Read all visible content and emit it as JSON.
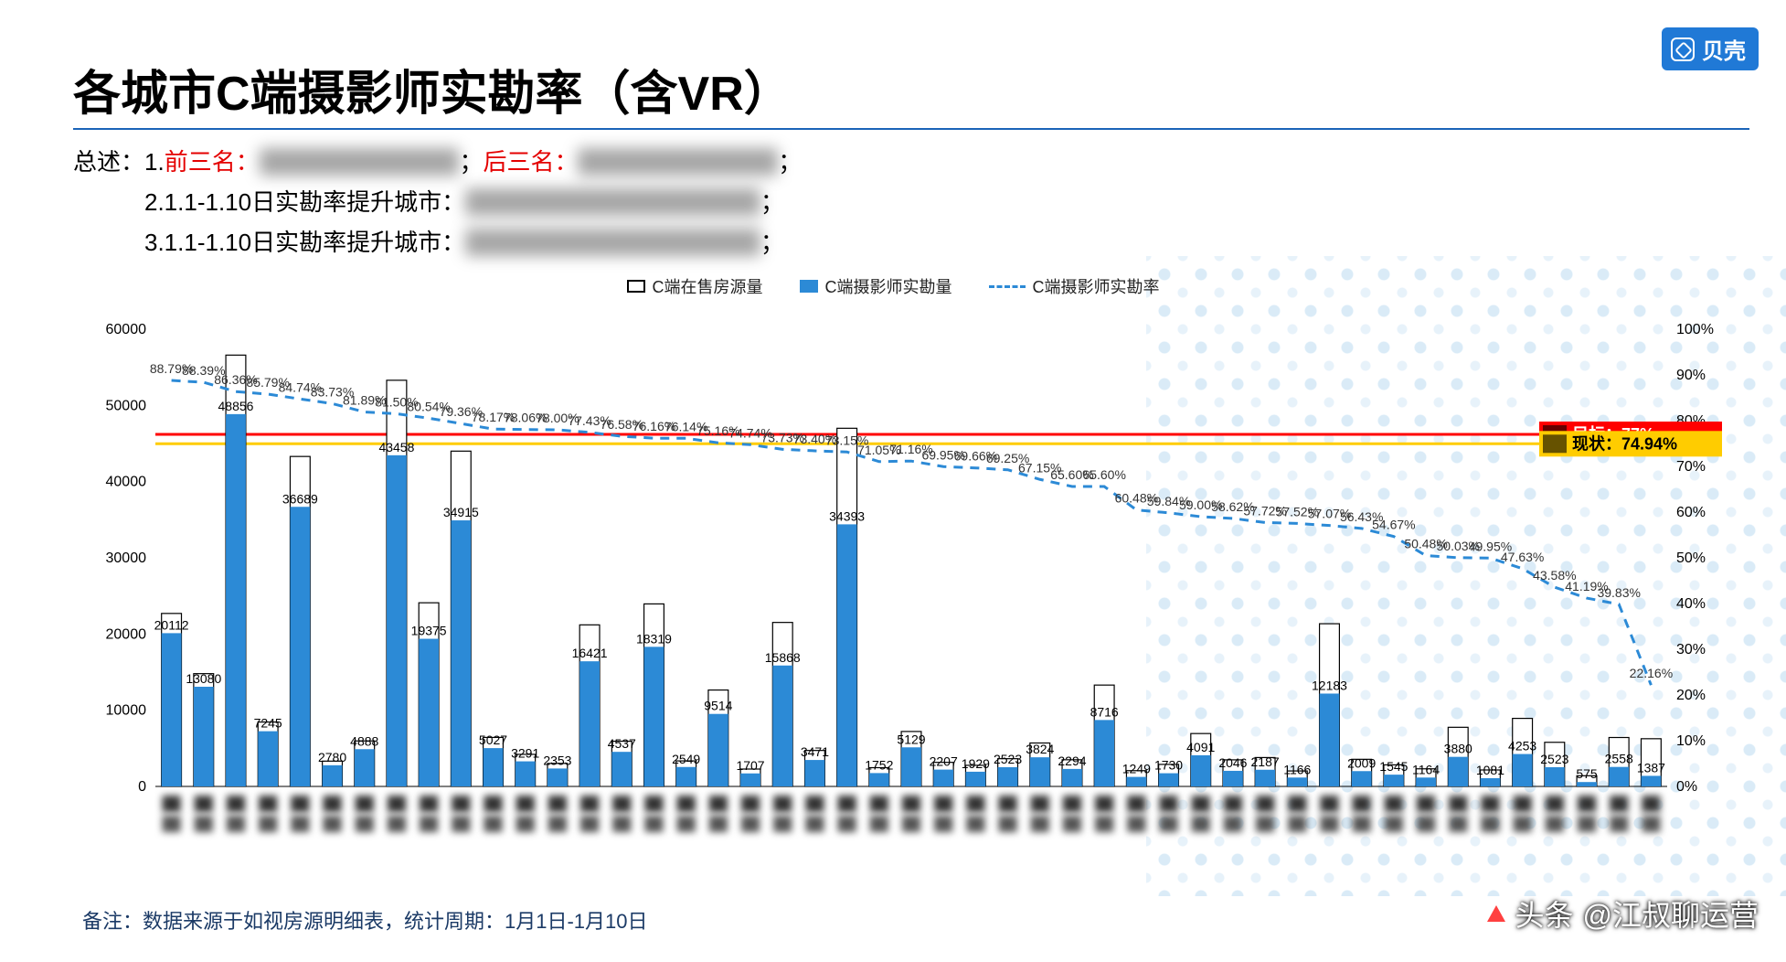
{
  "logo": {
    "text": "贝壳",
    "bg": "#2079d6"
  },
  "title": "各城市C端摄影师实勘率（含VR）",
  "summary": {
    "lines": [
      {
        "prefix": "总述：1.",
        "red1": "前三名：",
        "blur1": "XXXXXXXX",
        "mid": "；",
        "red2": "后三名：",
        "blur2": "XXXXXXXX",
        "suffix": "；"
      },
      {
        "prefix": "　　　2.1.1-1.10日实勘率提升城市：",
        "blur1": "XXXXXXXXXXXXXX",
        "suffix": "；"
      },
      {
        "prefix": "　　　3.1.1-1.10日实勘率提升城市：",
        "blur1": "XXXXXXXXXXXXXX",
        "suffix": "；"
      }
    ]
  },
  "legend": {
    "series1": "C端在售房源量",
    "series2": "C端摄影师实勘量",
    "series3": "C端摄影师实勘率"
  },
  "chart": {
    "type": "bar+line",
    "y_left": {
      "min": 0,
      "max": 60000,
      "step": 10000
    },
    "y_right": {
      "min": 0,
      "max": 1.0,
      "step": 0.1,
      "format": "percent"
    },
    "colors": {
      "bar_outline": "#000000",
      "bar_fill": "#2c8ad6",
      "line": "#2c8ad6",
      "target_line": "#ff0000",
      "status_line": "#ffcc00",
      "background": "#ffffff"
    },
    "target": {
      "label": "目标：77%",
      "value": 0.77,
      "box_bg": "#ff0000",
      "box_text": "#ffffff"
    },
    "status": {
      "label": "现状：74.94%",
      "value": 0.7494,
      "box_bg": "#ffcc00",
      "box_text": "#000000"
    },
    "data": [
      {
        "outline": 22700,
        "fill": 20112,
        "pct": 0.8879
      },
      {
        "outline": 14800,
        "fill": 13080,
        "pct": 0.8839
      },
      {
        "outline": 56600,
        "fill": 48856,
        "pct": 0.8636
      },
      {
        "outline": 8450,
        "fill": 7245,
        "pct": 0.8579
      },
      {
        "outline": 43300,
        "fill": 36689,
        "pct": 0.8474
      },
      {
        "outline": 3320,
        "fill": 2780,
        "pct": 0.8373
      },
      {
        "outline": 5970,
        "fill": 4888,
        "pct": 0.8189
      },
      {
        "outline": 53300,
        "fill": 43458,
        "pct": 0.815
      },
      {
        "outline": 24100,
        "fill": 19375,
        "pct": 0.8054
      },
      {
        "outline": 44000,
        "fill": 34915,
        "pct": 0.7936
      },
      {
        "outline": 6430,
        "fill": 5027,
        "pct": 0.7817
      },
      {
        "outline": 4210,
        "fill": 3291,
        "pct": 0.7806
      },
      {
        "outline": 3020,
        "fill": 2353,
        "pct": 0.78
      },
      {
        "outline": 21200,
        "fill": 16421,
        "pct": 0.7743
      },
      {
        "outline": 5930,
        "fill": 4537,
        "pct": 0.7658
      },
      {
        "outline": 23950,
        "fill": 18319,
        "pct": 0.7616
      },
      {
        "outline": 3350,
        "fill": 2549,
        "pct": 0.7614
      },
      {
        "outline": 12650,
        "fill": 9514,
        "pct": 0.7516
      },
      {
        "outline": 2280,
        "fill": 1707,
        "pct": 0.7474
      },
      {
        "outline": 21520,
        "fill": 15868,
        "pct": 0.7373
      },
      {
        "outline": 4720,
        "fill": 3471,
        "pct": 0.734
      },
      {
        "outline": 47000,
        "fill": 34393,
        "pct": 0.7315
      },
      {
        "outline": 2460,
        "fill": 1752,
        "pct": 0.7105
      },
      {
        "outline": 7210,
        "fill": 5129,
        "pct": 0.7116
      },
      {
        "outline": 3160,
        "fill": 2207,
        "pct": 0.6995
      },
      {
        "outline": 2770,
        "fill": 1929,
        "pct": 0.6966
      },
      {
        "outline": 3640,
        "fill": 2523,
        "pct": 0.6925
      },
      {
        "outline": 5700,
        "fill": 3824,
        "pct": 0.6715
      },
      {
        "outline": 3500,
        "fill": 2294,
        "pct": 0.656
      },
      {
        "outline": 13300,
        "fill": 8716,
        "pct": 0.656
      },
      {
        "outline": 2070,
        "fill": 1249,
        "pct": 0.6048
      },
      {
        "outline": 2890,
        "fill": 1730,
        "pct": 0.5984
      },
      {
        "outline": 6940,
        "fill": 4091,
        "pct": 0.59
      },
      {
        "outline": 3490,
        "fill": 2046,
        "pct": 0.5862
      },
      {
        "outline": 3790,
        "fill": 2187,
        "pct": 0.5772
      },
      {
        "outline": 2030,
        "fill": 1166,
        "pct": 0.5752
      },
      {
        "outline": 21350,
        "fill": 12183,
        "pct": 0.5707
      },
      {
        "outline": 3560,
        "fill": 2009,
        "pct": 0.5643
      },
      {
        "outline": 2830,
        "fill": 1545,
        "pct": 0.5467
      },
      {
        "outline": 2310,
        "fill": 1164,
        "pct": 0.5048
      },
      {
        "outline": 7760,
        "fill": 3880,
        "pct": 0.5003
      },
      {
        "outline": 2160,
        "fill": 1081,
        "pct": 0.4995
      },
      {
        "outline": 8930,
        "fill": 4253,
        "pct": 0.4763
      },
      {
        "outline": 5790,
        "fill": 2523,
        "pct": 0.4358
      },
      {
        "outline": 1400,
        "fill": 575,
        "pct": 0.4119
      },
      {
        "outline": 6420,
        "fill": 2558,
        "pct": 0.3983
      },
      {
        "outline": 6260,
        "fill": 1387,
        "pct": 0.2216
      }
    ],
    "xlabels_visible": [
      "市",
      "市",
      "市"
    ],
    "xlabel_fontsize": 16
  },
  "footnote": "备注：数据来源于如视房源明细表，统计周期：1月1日-1月10日",
  "watermark": {
    "prefix": "头条",
    "text": "@江叔聊运营"
  }
}
